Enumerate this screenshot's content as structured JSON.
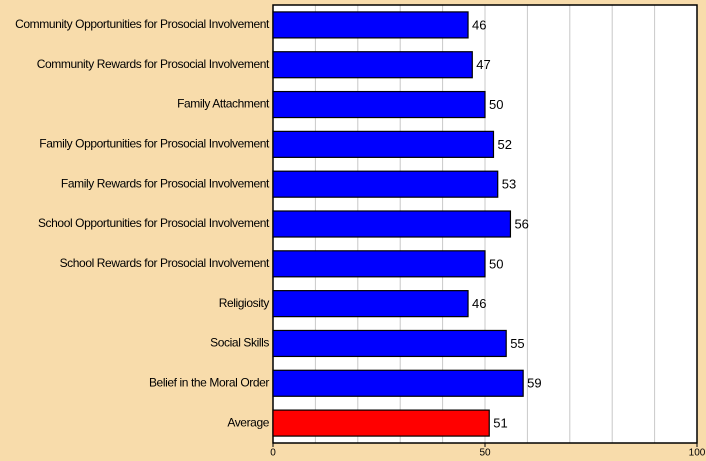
{
  "chart_data": {
    "type": "bar",
    "orientation": "horizontal",
    "categories": [
      "Community Opportunities for Prosocial Involvement",
      "Community Rewards for Prosocial Involvement",
      "Family Attachment",
      "Family Opportunities for Prosocial Involvement",
      "Family Rewards for Prosocial Involvement",
      "School Opportunities for Prosocial Involvement",
      "School Rewards for Prosocial Involvement",
      "Religiosity",
      "Social Skills",
      "Belief in the Moral Order",
      "Average"
    ],
    "values": [
      46,
      47,
      50,
      52,
      53,
      56,
      50,
      46,
      55,
      59,
      51
    ],
    "colors": [
      "#0000ff",
      "#0000ff",
      "#0000ff",
      "#0000ff",
      "#0000ff",
      "#0000ff",
      "#0000ff",
      "#0000ff",
      "#0000ff",
      "#0000ff",
      "#ff0000"
    ],
    "xlim": [
      0,
      100
    ],
    "xticks": [
      0,
      50,
      100
    ],
    "minor_xticks": [
      10,
      20,
      30,
      40,
      50,
      60,
      70,
      80,
      90
    ],
    "grid": true
  }
}
